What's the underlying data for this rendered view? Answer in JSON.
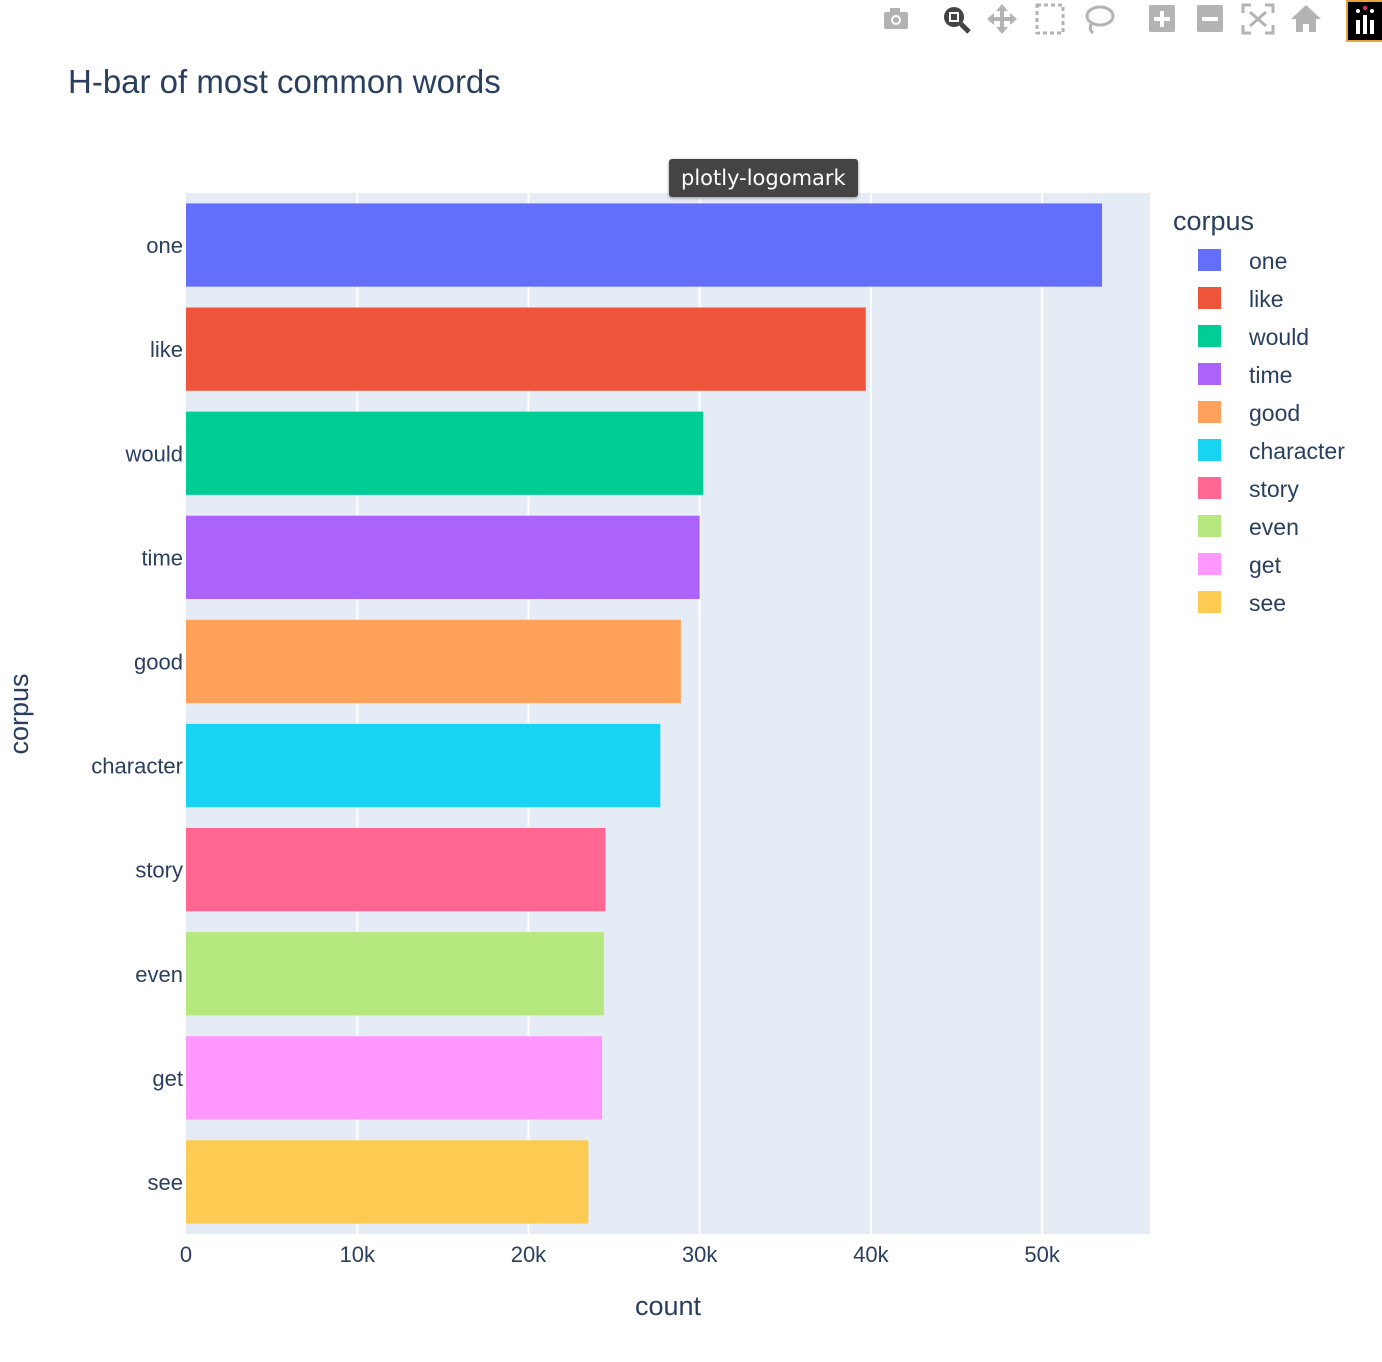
{
  "toolbar": {
    "icons": [
      "camera-icon",
      "zoom-icon",
      "pan-icon",
      "box-select-icon",
      "lasso-select-icon",
      "zoom-in-icon",
      "zoom-out-icon",
      "autoscale-icon",
      "reset-axes-icon",
      "plotly-logomark-icon"
    ],
    "tooltip": "plotly-logomark"
  },
  "colors": {
    "plot_bg": "#e5ecf6",
    "grid": "#ffffff",
    "text": "#2a3f5f"
  },
  "chart_data": {
    "type": "bar",
    "orientation": "horizontal",
    "title": "H-bar of most common words",
    "xlabel": "count",
    "ylabel": "corpus",
    "xlim": [
      0,
      56300
    ],
    "xticks": [
      0,
      10000,
      20000,
      30000,
      40000,
      50000
    ],
    "xtick_labels": [
      "0",
      "10k",
      "20k",
      "30k",
      "40k",
      "50k"
    ],
    "grid": true,
    "legend_title": "corpus",
    "legend_position": "right",
    "categories": [
      "one",
      "like",
      "would",
      "time",
      "good",
      "character",
      "story",
      "even",
      "get",
      "see"
    ],
    "values": [
      53500,
      39700,
      30200,
      30000,
      28900,
      27700,
      24500,
      24400,
      24300,
      23500
    ],
    "series_colors": [
      "#636efa",
      "#ef553b",
      "#00cc96",
      "#ab63fa",
      "#ffa15a",
      "#19d3f3",
      "#ff6692",
      "#b6e880",
      "#ff97ff",
      "#fecb52"
    ]
  }
}
